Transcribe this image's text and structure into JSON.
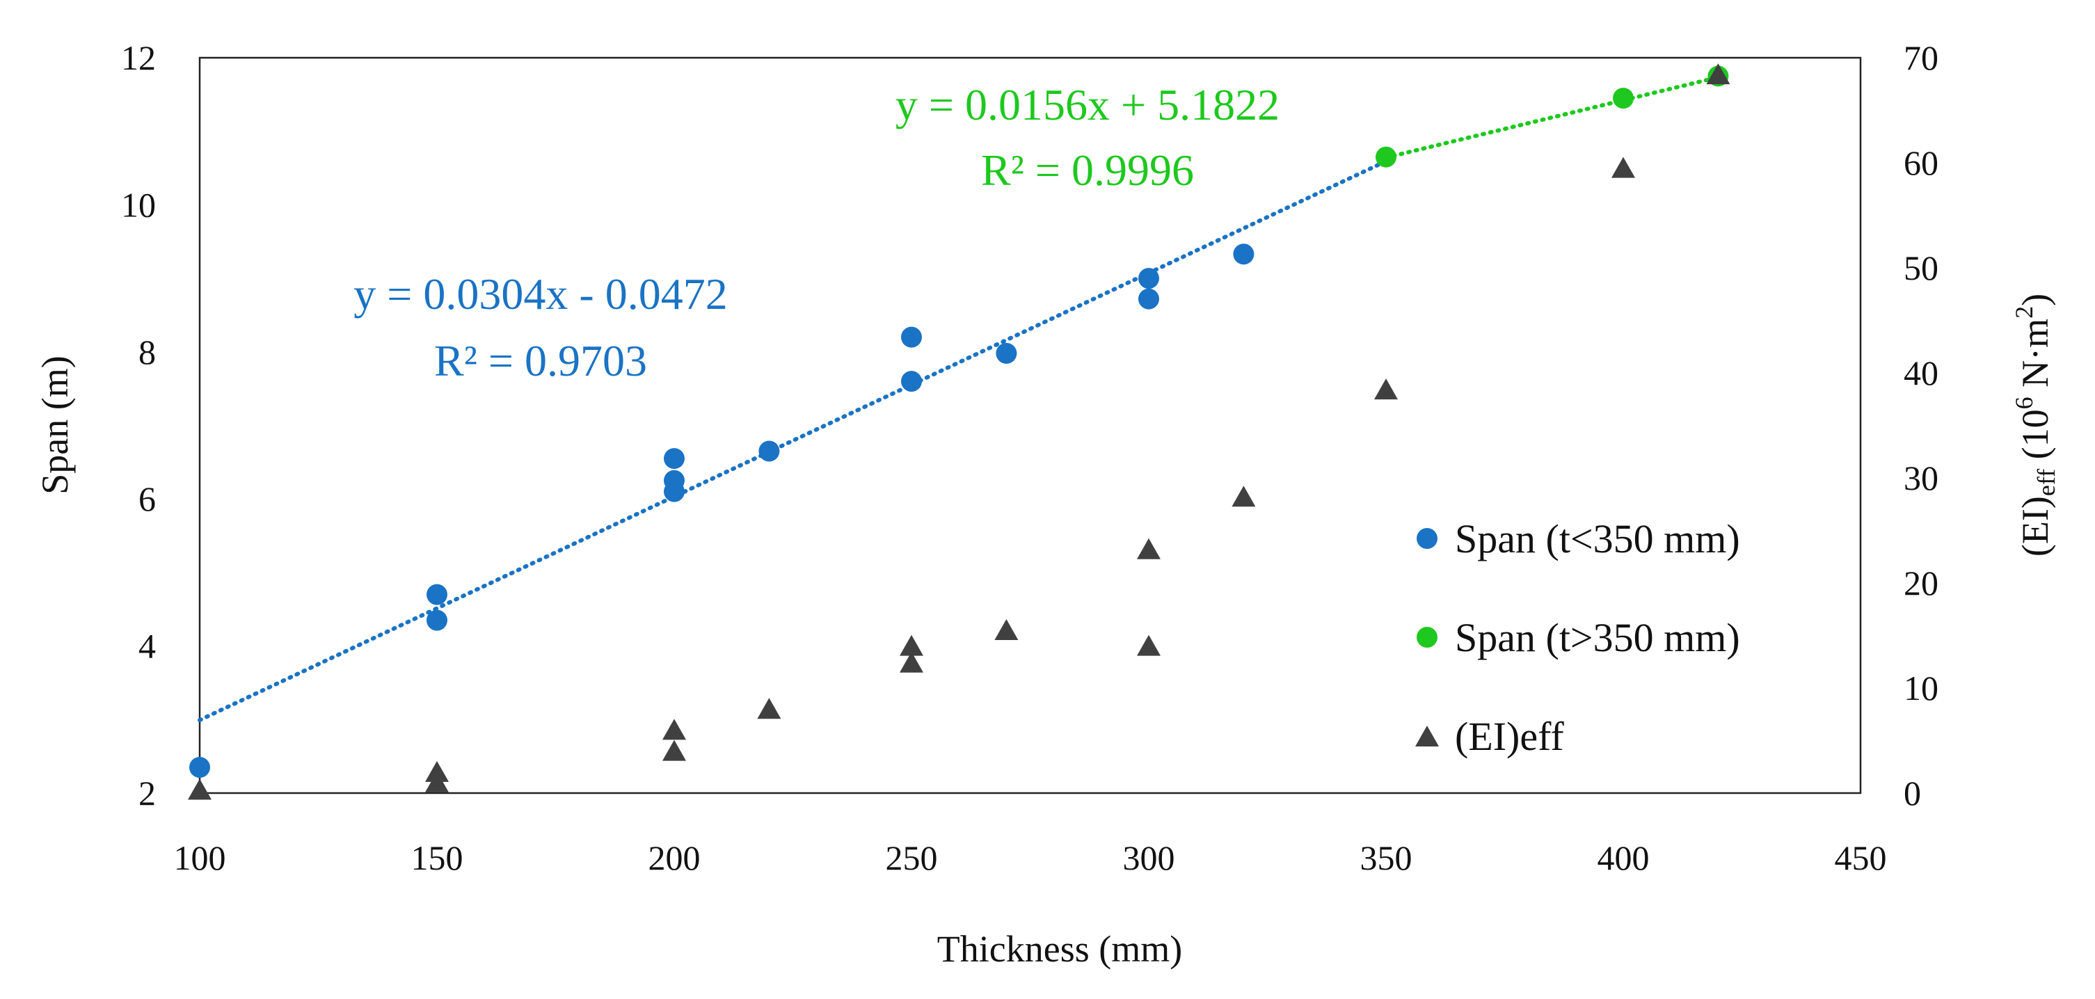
{
  "chart_data": {
    "type": "scatter",
    "title": "",
    "xlabel": "Thickness (mm)",
    "ylabel": "Span (m)",
    "y2label": {
      "main": "(EI)",
      "sub": "eff",
      "units_pre": " (10",
      "sup": "6",
      "units_mid": " N·m",
      "sup2": "2",
      "units_post": ")"
    },
    "xlim": [
      100,
      450
    ],
    "ylim": [
      2,
      12
    ],
    "y2lim": [
      0,
      70
    ],
    "x_ticks": [
      "100",
      "150",
      "200",
      "250",
      "300",
      "350",
      "400",
      "450"
    ],
    "y_ticks": [
      "2",
      "4",
      "6",
      "8",
      "10",
      "12"
    ],
    "y2_ticks": [
      "0",
      "10",
      "20",
      "30",
      "40",
      "50",
      "60",
      "70"
    ],
    "colors": {
      "span_small": "#1a73c4",
      "span_large": "#1ec81e",
      "ei": "#404040"
    },
    "series": [
      {
        "name": "Span (t<350 mm)",
        "axis": "left",
        "marker": "circle",
        "color": "#1a73c4",
        "points": [
          [
            100,
            2.35
          ],
          [
            150,
            4.7
          ],
          [
            150,
            4.35
          ],
          [
            200,
            6.55
          ],
          [
            200,
            6.25
          ],
          [
            200,
            6.1
          ],
          [
            220,
            6.65
          ],
          [
            250,
            8.2
          ],
          [
            250,
            7.6
          ],
          [
            270,
            7.98
          ],
          [
            300,
            9.0
          ],
          [
            300,
            8.72
          ],
          [
            320,
            9.33
          ]
        ]
      },
      {
        "name": "Span (t>350 mm)",
        "axis": "left",
        "marker": "circle",
        "color": "#1ec81e",
        "points": [
          [
            350,
            10.65
          ],
          [
            400,
            11.45
          ],
          [
            420,
            11.75
          ]
        ]
      },
      {
        "name": "(EI)eff",
        "axis": "right",
        "marker": "triangle",
        "color": "#404040",
        "points": [
          [
            100,
            0.1
          ],
          [
            150,
            1.8
          ],
          [
            150,
            0.8
          ],
          [
            200,
            5.8
          ],
          [
            200,
            3.8
          ],
          [
            220,
            7.8
          ],
          [
            250,
            13.8
          ],
          [
            250,
            12.2
          ],
          [
            270,
            15.3
          ],
          [
            300,
            23.0
          ],
          [
            300,
            13.8
          ],
          [
            320,
            28.0
          ],
          [
            350,
            38.2
          ],
          [
            400,
            59.3
          ],
          [
            420,
            68.2
          ]
        ]
      }
    ],
    "trendlines": [
      {
        "series": "Span (t<350 mm)",
        "slope": 0.0304,
        "intercept": -0.0472,
        "x_range": [
          100,
          350
        ],
        "color": "#1a73c4",
        "equation": "y = 0.0304x - 0.0472",
        "r2": "R² = 0.9703"
      },
      {
        "series": "Span (t>350 mm)",
        "slope": 0.0156,
        "intercept": 5.1822,
        "x_range": [
          350,
          420
        ],
        "color": "#1ec81e",
        "equation": "y = 0.0156x + 5.1822",
        "r2": "R² = 0.9996"
      }
    ],
    "legend": {
      "position": "right-center"
    }
  }
}
